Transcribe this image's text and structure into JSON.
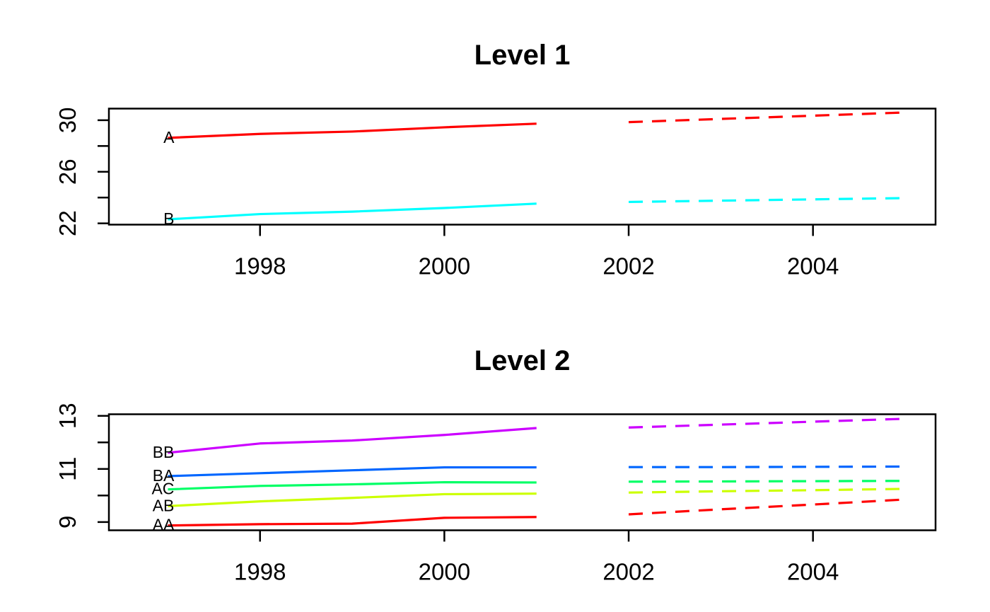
{
  "figure": {
    "background": "#ffffff",
    "text_color": "#000000"
  },
  "chart_data": [
    {
      "type": "line",
      "title": "Level 1",
      "xlabel": "",
      "ylabel": "",
      "grid": false,
      "legend": "series labels at line start",
      "x_observed": [
        1997,
        1998,
        1999,
        2000,
        2001
      ],
      "x_forecast": [
        2002,
        2003,
        2004,
        2005
      ],
      "x_ticks": [
        1998,
        2000,
        2002,
        2004
      ],
      "y_ticks": [
        22,
        24,
        26,
        28,
        30
      ],
      "y_tick_labels": [
        22,
        26,
        30
      ],
      "xlim": [
        1996.36,
        2005.33
      ],
      "ylim": [
        21.9,
        30.9
      ],
      "line_styles": {
        "observed": "solid",
        "forecast": "dashed"
      },
      "series": [
        {
          "name": "A",
          "color": "#FF0000",
          "observed": [
            28.63,
            28.94,
            29.12,
            29.45,
            29.73
          ],
          "forecast": [
            29.85,
            30.1,
            30.35,
            30.6
          ]
        },
        {
          "name": "B",
          "color": "#00FFFF",
          "observed": [
            22.31,
            22.72,
            22.91,
            23.19,
            23.53
          ],
          "forecast": [
            23.66,
            23.76,
            23.86,
            23.96
          ]
        }
      ]
    },
    {
      "type": "line",
      "title": "Level 2",
      "xlabel": "",
      "ylabel": "",
      "grid": false,
      "legend": "series labels at line start",
      "x_observed": [
        1997,
        1998,
        1999,
        2000,
        2001
      ],
      "x_forecast": [
        2002,
        2003,
        2004,
        2005
      ],
      "x_ticks": [
        1998,
        2000,
        2002,
        2004
      ],
      "y_ticks": [
        9,
        10,
        11,
        12,
        13
      ],
      "y_tick_labels": [
        9,
        11,
        13
      ],
      "xlim": [
        1996.36,
        2005.33
      ],
      "ylim": [
        8.69,
        13.06
      ],
      "line_styles": {
        "observed": "solid",
        "forecast": "dashed"
      },
      "series": [
        {
          "name": "BB",
          "color": "#CC00FF",
          "observed": [
            11.61,
            11.96,
            12.07,
            12.28,
            12.54
          ],
          "forecast": [
            12.56,
            12.67,
            12.78,
            12.89
          ]
        },
        {
          "name": "BA",
          "color": "#0066FF",
          "observed": [
            10.73,
            10.84,
            10.95,
            11.06,
            11.06
          ],
          "forecast": [
            11.07,
            11.07,
            11.08,
            11.09
          ]
        },
        {
          "name": "AC",
          "color": "#00FF66",
          "observed": [
            10.23,
            10.36,
            10.42,
            10.5,
            10.49
          ],
          "forecast": [
            10.52,
            10.53,
            10.54,
            10.55
          ]
        },
        {
          "name": "AB",
          "color": "#CCFF00",
          "observed": [
            9.6,
            9.78,
            9.91,
            10.05,
            10.07
          ],
          "forecast": [
            10.11,
            10.16,
            10.2,
            10.25
          ]
        },
        {
          "name": "AA",
          "color": "#FF0000",
          "observed": [
            8.87,
            8.92,
            8.94,
            9.16,
            9.19
          ],
          "forecast": [
            9.29,
            9.48,
            9.66,
            9.85
          ]
        }
      ]
    }
  ]
}
